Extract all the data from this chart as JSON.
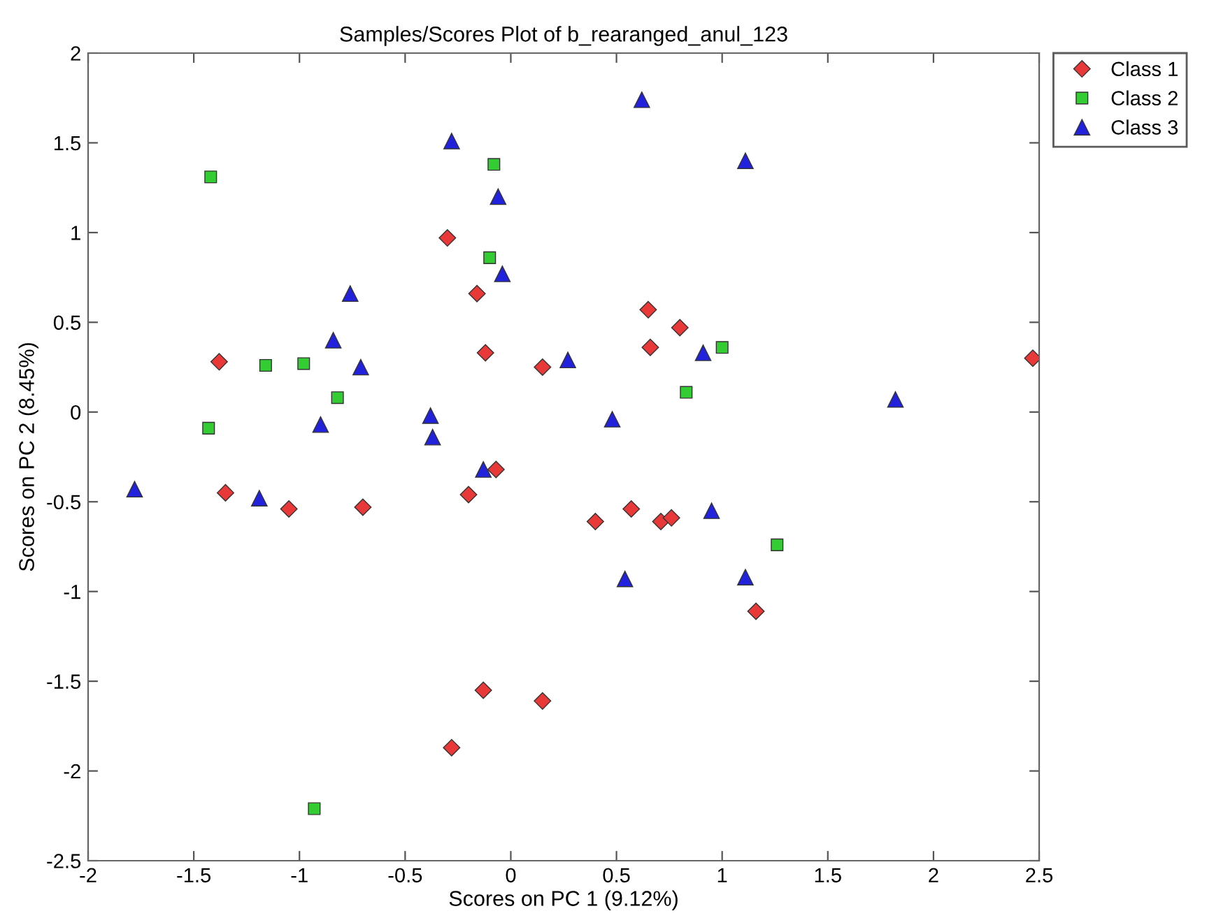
{
  "chart_data": {
    "type": "scatter",
    "title": "Samples/Scores Plot of b_rearanged_anul_123",
    "xlabel": "Scores on PC 1 (9.12%)",
    "ylabel": "Scores on PC 2 (8.45%)",
    "xlim": [
      -2,
      2.5
    ],
    "xticks": [
      -2,
      -1.5,
      -1,
      -0.5,
      0,
      0.5,
      1,
      1.5,
      2,
      2.5
    ],
    "ylim": [
      -2.5,
      2
    ],
    "yticks": [
      -2.5,
      -2,
      -1.5,
      -1,
      -0.5,
      0,
      0.5,
      1,
      1.5,
      2
    ],
    "grid": false,
    "legend": "top right",
    "series": [
      {
        "name": "Class 1",
        "color": "#e83838",
        "marker": "diamond",
        "x": [
          -0.3,
          -0.16,
          -0.12,
          -1.38,
          0.65,
          0.8,
          0.66,
          0.15,
          2.47,
          -1.35,
          -1.05,
          -0.7,
          -0.2,
          -0.07,
          -0.13,
          -0.28,
          0.4,
          0.57,
          0.71,
          0.76,
          1.16,
          0.15
        ],
        "values": [
          0.97,
          0.66,
          0.33,
          0.28,
          0.57,
          0.47,
          0.36,
          0.25,
          0.3,
          -0.45,
          -0.54,
          -0.53,
          -0.46,
          -0.32,
          -1.55,
          -1.87,
          -0.61,
          -0.54,
          -0.61,
          -0.59,
          -1.11,
          -1.61
        ]
      },
      {
        "name": "Class 2",
        "color": "#33cc33",
        "marker": "square",
        "x": [
          -0.08,
          -1.42,
          -0.1,
          -1.16,
          -0.98,
          -0.82,
          -1.43,
          1.0,
          0.83,
          -0.93,
          1.26
        ],
        "values": [
          1.38,
          1.31,
          0.86,
          0.26,
          0.27,
          0.08,
          -0.09,
          0.36,
          0.11,
          -2.21,
          -0.74
        ]
      },
      {
        "name": "Class 3",
        "color": "#2222dd",
        "marker": "triangle",
        "x": [
          -0.28,
          -0.06,
          -0.04,
          -0.76,
          -0.84,
          -0.71,
          -0.9,
          -0.38,
          -0.37,
          0.62,
          1.11,
          0.91,
          0.27,
          1.82,
          0.48,
          -1.78,
          -1.19,
          -0.13,
          0.95,
          0.54,
          1.11
        ],
        "values": [
          1.51,
          1.2,
          0.77,
          0.66,
          0.4,
          0.25,
          -0.07,
          -0.02,
          -0.14,
          1.74,
          1.4,
          0.33,
          0.29,
          0.07,
          -0.04,
          -0.43,
          -0.48,
          -0.32,
          -0.55,
          -0.93,
          -0.92
        ]
      }
    ]
  }
}
